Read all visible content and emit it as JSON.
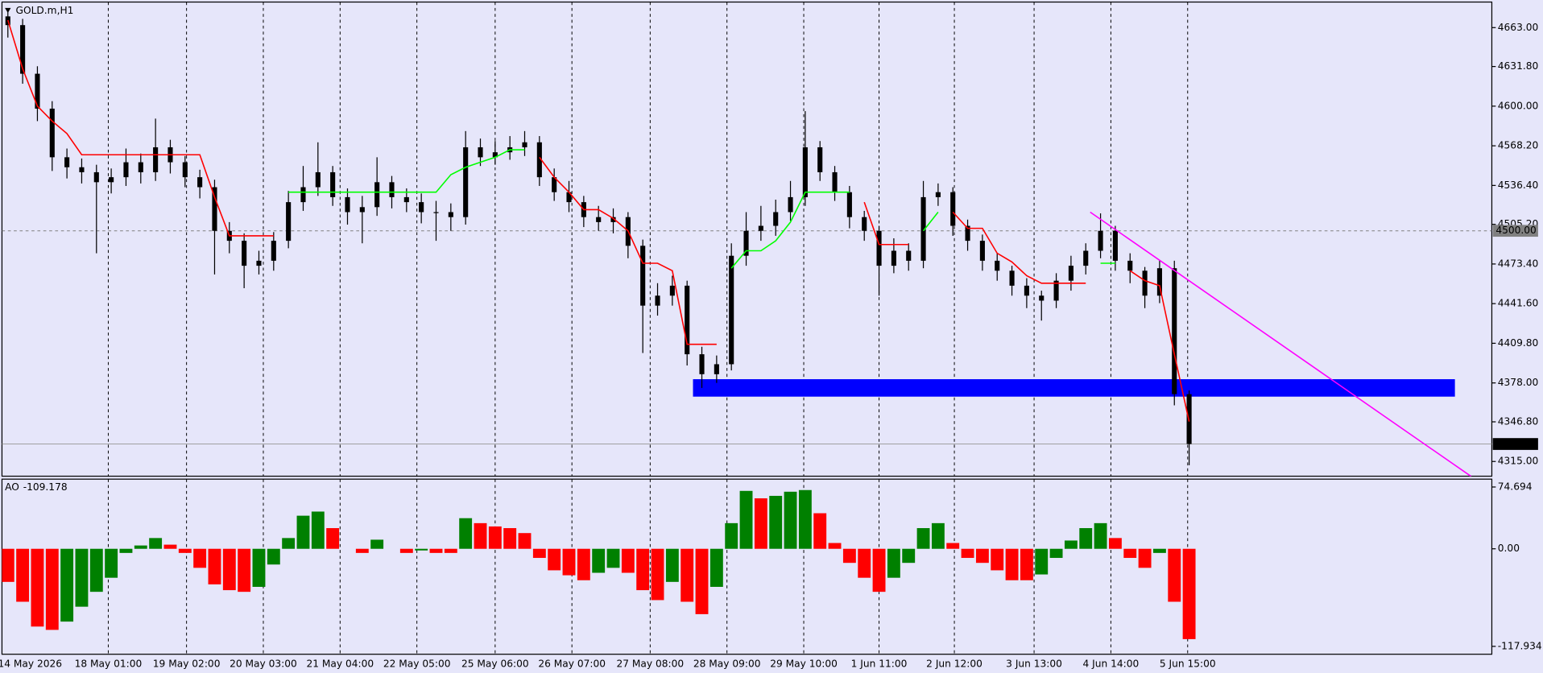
{
  "chart_data": [
    {
      "type": "candlestick",
      "title": "GOLD.m,H1",
      "color": "#000000",
      "open": [
        4672,
        4665,
        4626,
        4598,
        4559,
        4551,
        4547,
        4539,
        4543,
        4555,
        4547,
        4567,
        4555,
        4543,
        4535,
        4500,
        4492,
        4472,
        4476,
        4492,
        4523,
        4535,
        4547,
        4527,
        4515,
        4519,
        4539,
        4527,
        4523,
        4515,
        4515,
        4511,
        4567,
        4559,
        4563,
        4567,
        4571,
        4543,
        4531,
        4523,
        4511,
        4507,
        4511,
        4488,
        4440,
        4448,
        4456,
        4401,
        4385,
        4393,
        4480,
        4500,
        4504,
        4515,
        4527,
        4567,
        4547,
        4531,
        4511,
        4500,
        4472,
        4484,
        4476,
        4527,
        4531,
        4504,
        4492,
        4476,
        4468,
        4456,
        4448,
        4444,
        4460,
        4472,
        4484,
        4500,
        4476,
        4468,
        4448,
        4470,
        4369
      ],
      "high": [
        4678,
        4670,
        4632,
        4604,
        4566,
        4558,
        4553,
        4550,
        4566,
        4562,
        4590,
        4573,
        4560,
        4549,
        4541,
        4507,
        4498,
        4484,
        4499,
        4532,
        4552,
        4571,
        4552,
        4534,
        4528,
        4559,
        4544,
        4534,
        4530,
        4524,
        4522,
        4580,
        4574,
        4572,
        4576,
        4580,
        4576,
        4550,
        4540,
        4528,
        4520,
        4518,
        4515,
        4493,
        4458,
        4464,
        4460,
        4407,
        4400,
        4490,
        4515,
        4520,
        4525,
        4540,
        4596,
        4572,
        4552,
        4536,
        4516,
        4504,
        4494,
        4490,
        4540,
        4538,
        4535,
        4509,
        4497,
        4482,
        4472,
        4462,
        4452,
        4466,
        4480,
        4490,
        4514,
        4504,
        4482,
        4471,
        4476,
        4476,
        4372
      ],
      "low": [
        4655,
        4618,
        4588,
        4548,
        4542,
        4538,
        4482,
        4530,
        4536,
        4538,
        4540,
        4546,
        4535,
        4526,
        4465,
        4482,
        4454,
        4465,
        4468,
        4486,
        4516,
        4528,
        4520,
        4505,
        4490,
        4512,
        4518,
        4515,
        4506,
        4492,
        4500,
        4505,
        4552,
        4553,
        4557,
        4560,
        4536,
        4524,
        4515,
        4503,
        4500,
        4498,
        4478,
        4402,
        4432,
        4440,
        4392,
        4374,
        4378,
        4388,
        4472,
        4492,
        4496,
        4508,
        4520,
        4540,
        4524,
        4502,
        4492,
        4448,
        4466,
        4468,
        4470,
        4520,
        4496,
        4484,
        4468,
        4460,
        4448,
        4438,
        4428,
        4438,
        4452,
        4465,
        4478,
        4468,
        4458,
        4438,
        4442,
        4360,
        4312
      ],
      "close": [
        4665,
        4626,
        4598,
        4559,
        4551,
        4547,
        4539,
        4543,
        4555,
        4547,
        4567,
        4555,
        4543,
        4535,
        4500,
        4492,
        4472,
        4476,
        4492,
        4523,
        4535,
        4547,
        4527,
        4515,
        4519,
        4539,
        4527,
        4523,
        4515,
        4515,
        4511,
        4567,
        4559,
        4563,
        4567,
        4571,
        4543,
        4531,
        4523,
        4511,
        4507,
        4511,
        4488,
        4440,
        4448,
        4456,
        4401,
        4385,
        4393,
        4480,
        4500,
        4504,
        4515,
        4527,
        4567,
        4547,
        4531,
        4511,
        4500,
        4472,
        4484,
        4476,
        4527,
        4531,
        4504,
        4492,
        4476,
        4468,
        4456,
        4448,
        4444,
        4460,
        4472,
        4484,
        4500,
        4476,
        4468,
        4448,
        4470,
        4369,
        4329.01
      ],
      "lines": [
        {
          "color": "#ff0000",
          "values": [
            4669,
            4630,
            4600,
            4588,
            4578,
            4561,
            4561,
            4561,
            4561,
            4561,
            4561,
            4561,
            4561,
            4561,
            4527,
            4496,
            4496,
            4496,
            4496,
            null,
            null,
            null,
            null,
            null,
            null,
            null,
            null,
            null,
            null,
            null,
            null,
            null,
            null,
            null,
            null,
            null,
            4559,
            4543,
            4531,
            4517,
            4517,
            4510,
            4500,
            4474,
            4474,
            4468,
            4409,
            4409,
            4409,
            null,
            null,
            null,
            null,
            null,
            null,
            null,
            null,
            null,
            4523,
            4489,
            4489,
            4489,
            null,
            null,
            4515,
            4502,
            4502,
            4482,
            4475,
            4464,
            4458,
            4458,
            4458,
            4458,
            null,
            null,
            4468,
            4460,
            4456,
            4401,
            4347
          ]
        },
        {
          "color": "#00ff00",
          "values": [
            null,
            null,
            null,
            null,
            null,
            null,
            null,
            null,
            null,
            null,
            null,
            null,
            null,
            null,
            null,
            null,
            null,
            null,
            null,
            4531,
            4531,
            4531,
            4531,
            4531,
            4531,
            4531,
            4531,
            4531,
            4531,
            4531,
            4545,
            4551,
            4555,
            4559,
            4565,
            4565,
            null,
            null,
            null,
            null,
            null,
            null,
            null,
            null,
            null,
            null,
            null,
            null,
            null,
            4470,
            4484,
            4484,
            4492,
            4507,
            4531,
            4531,
            4531,
            4531,
            null,
            null,
            null,
            null,
            4500,
            4515,
            null,
            null,
            null,
            null,
            null,
            null,
            null,
            null,
            null,
            null,
            4474,
            4474,
            null,
            null,
            null,
            null,
            null
          ]
        }
      ],
      "xlim": [
        -0.4,
        100.5
      ],
      "xticks": [
        {
          "value": 1.5,
          "label": "14 May 2026"
        },
        {
          "value": 6.8,
          "label": "18 May 01:00"
        },
        {
          "value": 12.1,
          "label": "19 May 02:00"
        },
        {
          "value": 17.3,
          "label": "20 May 03:00"
        },
        {
          "value": 22.5,
          "label": "21 May 04:00"
        },
        {
          "value": 27.7,
          "label": "22 May 05:00"
        },
        {
          "value": 33,
          "label": "25 May 06:00"
        },
        {
          "value": 38.2,
          "label": "26 May 07:00"
        },
        {
          "value": 43.5,
          "label": "27 May 08:00"
        },
        {
          "value": 48.7,
          "label": "28 May 09:00"
        },
        {
          "value": 53.9,
          "label": "29 May 10:00"
        },
        {
          "value": 59,
          "label": "1 Jun 11:00"
        },
        {
          "value": 64.1,
          "label": "2 Jun 12:00"
        },
        {
          "value": 69.5,
          "label": "3 Jun 13:00"
        },
        {
          "value": 74.7,
          "label": "4 Jun 14:00"
        },
        {
          "value": 79.9,
          "label": "5 Jun 15:00"
        }
      ],
      "grid": true,
      "ylim": [
        4303.2,
        4683.5
      ],
      "yticks": [
        {
          "value": 4663,
          "label": "4663.00"
        },
        {
          "value": 4631.8,
          "label": "4631.80"
        },
        {
          "value": 4600,
          "label": "4600.00"
        },
        {
          "value": 4568.2,
          "label": "4568.20"
        },
        {
          "value": 4536.4,
          "label": "4536.40"
        },
        {
          "value": 4505.2,
          "label": "4505.20"
        },
        {
          "value": 4473.4,
          "label": "4473.40"
        },
        {
          "value": 4441.6,
          "label": "4441.60"
        },
        {
          "value": 4409.8,
          "label": "4409.80"
        },
        {
          "value": 4378,
          "label": "4378.00"
        },
        {
          "value": 4346.8,
          "label": "4346.80"
        },
        {
          "value": 4315,
          "label": "4315.00"
        }
      ],
      "hlines": [
        {
          "value": 4500,
          "label": "4500.00",
          "color": "#808080",
          "dashed": true,
          "label_background": "#808080"
        },
        {
          "value": 4329.01,
          "label": "4329.01",
          "color": "#a0a0a0",
          "dashed": false,
          "label_background": "#000000"
        }
      ],
      "zone": {
        "x": [
          46.4,
          98
        ],
        "y": [
          4367,
          4381
        ],
        "color": "#0000ff"
      },
      "trendline": {
        "x": [
          73.3,
          99.1
        ],
        "y": [
          4515,
          4303
        ],
        "color": "#ff00ff"
      }
    },
    {
      "type": "bar",
      "title": "AO",
      "up_color": "#008000",
      "down_color": "#ff0000",
      "values": [
        -40,
        -64,
        -94,
        -98,
        -88,
        -70,
        -52,
        -35,
        -5,
        4,
        13,
        5,
        -5,
        -23,
        -43,
        -50,
        -52,
        -46,
        -19,
        13,
        40,
        45,
        25,
        0,
        -5,
        11,
        0,
        -5,
        -2,
        -5,
        -5,
        37,
        31,
        27,
        25,
        19,
        -11,
        -26,
        -32,
        -38,
        -29,
        -23,
        -29,
        -50,
        -62,
        -40,
        -64,
        -79,
        -46,
        31,
        70,
        61,
        64,
        69,
        71,
        43,
        7,
        -17,
        -35,
        -52,
        -35,
        -17,
        25,
        31,
        7,
        -11,
        -17,
        -26,
        -38,
        -38,
        -31,
        -11,
        10,
        25,
        31,
        13,
        -11,
        -23,
        -5,
        -64,
        -109.178
      ],
      "ylim": [
        -117.934,
        74.694
      ],
      "yticks": [
        74.694,
        {
          "value": 0,
          "label": "0.00"
        },
        -117.934
      ]
    }
  ]
}
